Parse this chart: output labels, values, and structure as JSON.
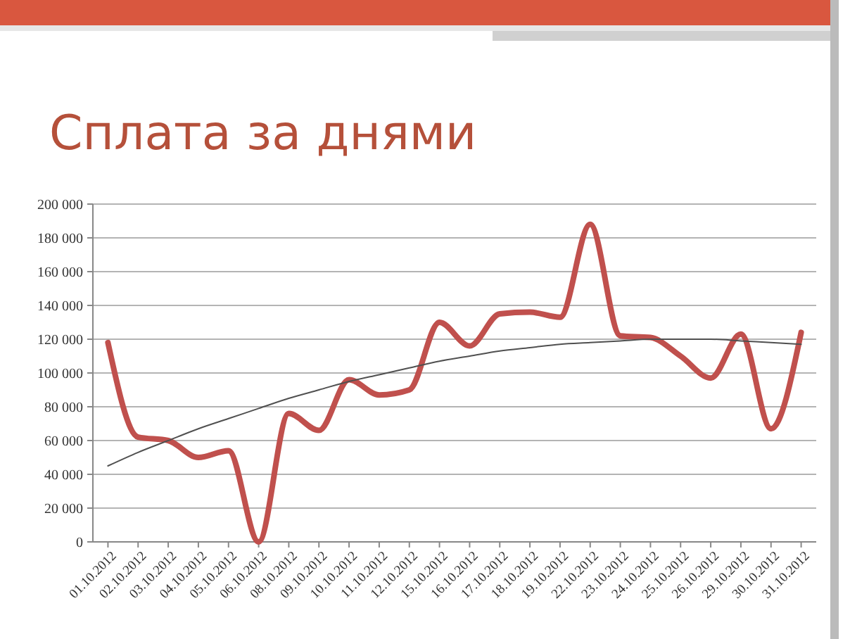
{
  "chart_data": {
    "type": "line",
    "title": "Сплата за днями",
    "categories": [
      "01.10.2012",
      "02.10.2012",
      "03.10.2012",
      "04.10.2012",
      "05.10.2012",
      "06.10.2012",
      "08.10.2012",
      "09.10.2012",
      "10.10.2012",
      "11.10.2012",
      "12.10.2012",
      "15.10.2012",
      "16.10.2012",
      "17.10.2012",
      "18.10.2012",
      "19.10.2012",
      "22.10.2012",
      "23.10.2012",
      "24.10.2012",
      "25.10.2012",
      "26.10.2012",
      "29.10.2012",
      "30.10.2012",
      "31.10.2012"
    ],
    "series": [
      {
        "color": "#c0504d",
        "values": [
          118000,
          62000,
          60000,
          50000,
          54000,
          0,
          76000,
          66000,
          96000,
          87000,
          90000,
          130000,
          116000,
          135000,
          136000,
          133000,
          188000,
          122000,
          121000,
          110000,
          97000,
          123000,
          67000,
          124000
        ]
      },
      {
        "type": "line",
        "color": "#505050",
        "values": [
          45000,
          53000,
          60000,
          67000,
          73000,
          79000,
          85000,
          90000,
          95000,
          99000,
          103000,
          107000,
          110000,
          113000,
          115000,
          117000,
          118000,
          119000,
          120000,
          120000,
          120000,
          119000,
          118000,
          117000
        ]
      }
    ],
    "ylim": [
      0,
      200000
    ],
    "yticks": [
      {
        "value": 0,
        "label": "0"
      },
      {
        "value": 20000,
        "label": "20 000"
      },
      {
        "value": 40000,
        "label": "40 000"
      },
      {
        "value": 60000,
        "label": "60 000"
      },
      {
        "value": 80000,
        "label": "80 000"
      },
      {
        "value": 100000,
        "label": "100 000"
      },
      {
        "value": 120000,
        "label": "120 000"
      },
      {
        "value": 140000,
        "label": "140 000"
      },
      {
        "value": 160000,
        "label": "160 000"
      },
      {
        "value": 180000,
        "label": "180 000"
      },
      {
        "value": 200000,
        "label": "200 000"
      }
    ],
    "grid": "y",
    "marker": "none",
    "line_style": "solid"
  }
}
